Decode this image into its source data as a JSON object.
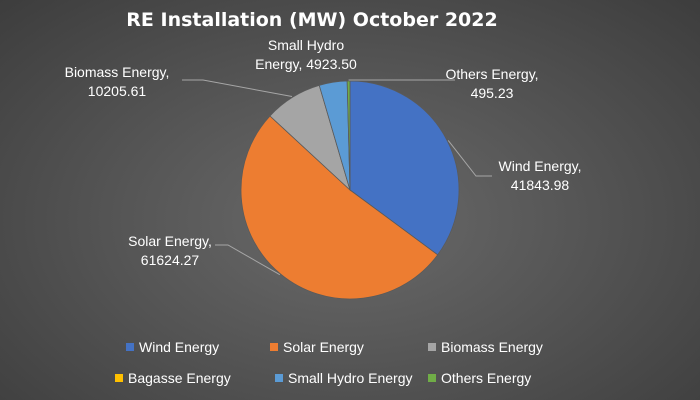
{
  "chart_data": {
    "type": "pie",
    "title": "RE Installation (MW) October 2022",
    "categories": [
      "Wind Energy",
      "Solar Energy",
      "Biomass Energy",
      "Bagasse Energy",
      "Small Hydro Energy",
      "Others Energy"
    ],
    "values": [
      41843.98,
      61624.27,
      10205.61,
      0,
      4923.5,
      495.23
    ],
    "colors": [
      "#4472c4",
      "#ed7d31",
      "#a5a5a5",
      "#ffc000",
      "#5b9bd5",
      "#70ad47"
    ],
    "data_labels": [
      {
        "category": "Wind Energy",
        "lines": [
          "Wind Energy,",
          "41843.98"
        ]
      },
      {
        "category": "Solar Energy",
        "lines": [
          "Solar Energy,",
          "61624.27"
        ]
      },
      {
        "category": "Biomass Energy",
        "lines": [
          "Biomass Energy,",
          "10205.61"
        ]
      },
      {
        "category": "Small Hydro Energy",
        "lines": [
          "Small Hydro",
          "Energy, 4923.50"
        ]
      },
      {
        "category": "Others Energy",
        "lines": [
          "Others Energy,",
          "495.23"
        ]
      }
    ],
    "legend_position": "bottom",
    "start_angle": "12 o'clock",
    "direction": "clockwise"
  }
}
